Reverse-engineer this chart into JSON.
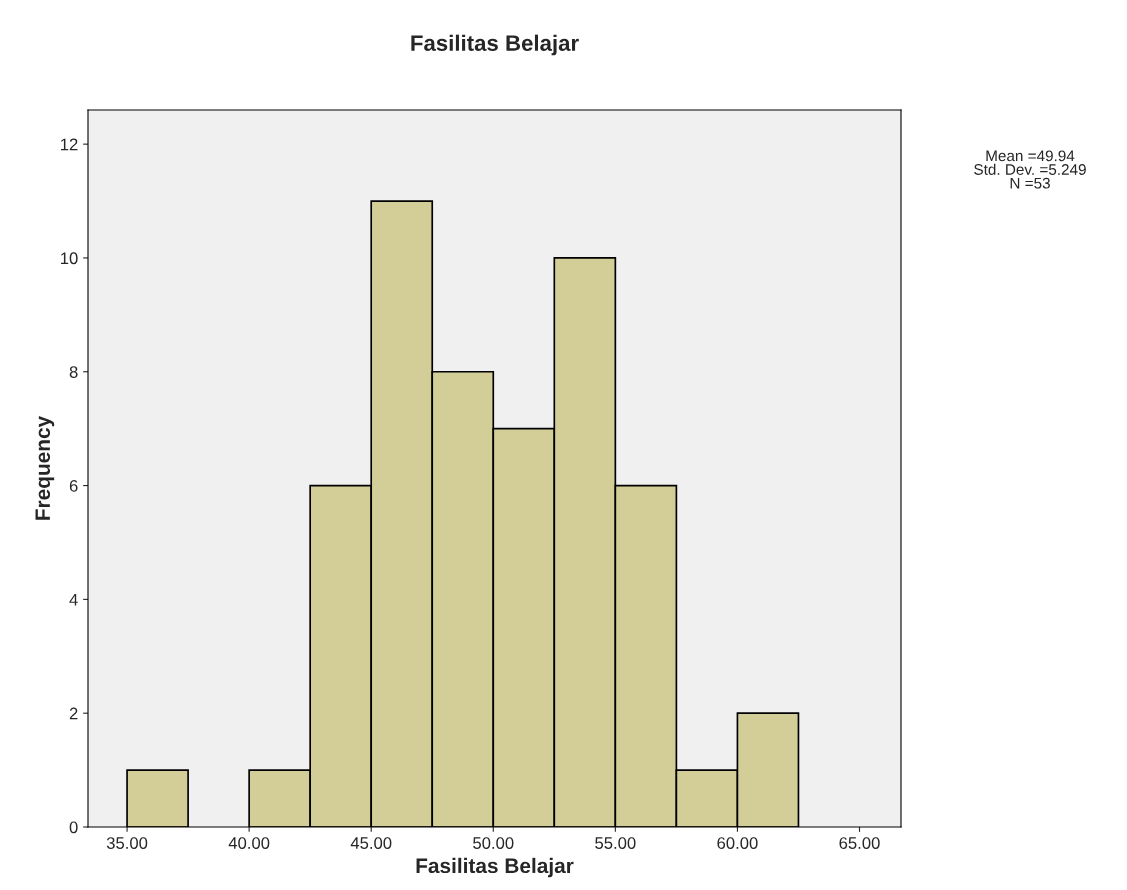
{
  "chart_data": {
    "type": "histogram",
    "title": "Fasilitas Belajar",
    "xlabel": "Fasilitas Belajar",
    "ylabel": "Frequency",
    "bins": [
      35,
      37.5,
      40,
      42.5,
      45,
      47.5,
      50,
      52.5,
      55,
      57.5,
      60,
      62.5
    ],
    "values": [
      1,
      0,
      1,
      6,
      11,
      8,
      7,
      10,
      6,
      1,
      2
    ],
    "color": "#d3ce97",
    "xlim": [
      33.4,
      66.7
    ],
    "ylim": [
      0,
      12.6
    ],
    "xticks": [
      {
        "value": 35,
        "label": "35.00"
      },
      {
        "value": 40,
        "label": "40.00"
      },
      {
        "value": 45,
        "label": "45.00"
      },
      {
        "value": 50,
        "label": "50.00"
      },
      {
        "value": 55,
        "label": "55.00"
      },
      {
        "value": 60,
        "label": "60.00"
      },
      {
        "value": 65,
        "label": "65.00"
      }
    ],
    "yticks": [
      0,
      2,
      4,
      6,
      8,
      10,
      12
    ],
    "annotations": [
      "Mean =49.94",
      "Std. Dev. =5.249",
      "N =53"
    ]
  }
}
